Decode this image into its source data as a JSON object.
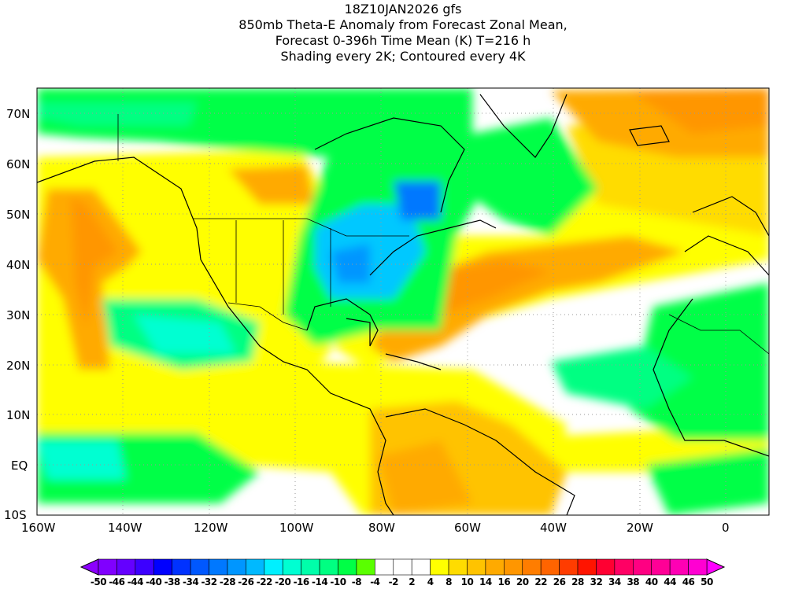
{
  "title": {
    "line1": "18Z10JAN2026 gfs",
    "line2": "850mb Theta-E Anomaly from Forecast Zonal Mean,",
    "line3": "Forecast 0-396h Time Mean (K) T=216 h",
    "line4": "Shading every 2K; Contoured every 4K"
  },
  "lat_labels": [
    "70N",
    "60N",
    "50N",
    "40N",
    "30N",
    "20N",
    "10N",
    "EQ",
    "10S"
  ],
  "lon_labels": [
    "160W",
    "140W",
    "120W",
    "100W",
    "80W",
    "60W",
    "40W",
    "20W",
    "0"
  ],
  "colorbar": {
    "labels": [
      "-50",
      "-46",
      "-44",
      "-40",
      "-38",
      "-34",
      "-32",
      "-28",
      "-26",
      "-22",
      "-20",
      "-16",
      "-14",
      "-10",
      "-8",
      "-4",
      "-2",
      "2",
      "4",
      "8",
      "10",
      "14",
      "16",
      "20",
      "22",
      "26",
      "28",
      "32",
      "34",
      "38",
      "40",
      "44",
      "46",
      "50"
    ],
    "colors": [
      "#8000ff",
      "#6400ff",
      "#3c00ff",
      "#0000ff",
      "#0032ff",
      "#0058ff",
      "#0078ff",
      "#0096ff",
      "#00b9ff",
      "#00f0ff",
      "#00ffd2",
      "#00ffaa",
      "#00ff82",
      "#00ff46",
      "#5aff00",
      "#ffffff",
      "#ffffff",
      "#ffffff",
      "#ffff00",
      "#ffdc00",
      "#ffc300",
      "#ffaa00",
      "#ff9600",
      "#ff7d00",
      "#ff6400",
      "#ff3c00",
      "#ff1400",
      "#ff0032",
      "#ff0064",
      "#ff0082",
      "#ff0096",
      "#ff00b4",
      "#ff00d2"
    ],
    "left_arrow_color": "#8c00ff",
    "right_arrow_color": "#ff00ff"
  }
}
